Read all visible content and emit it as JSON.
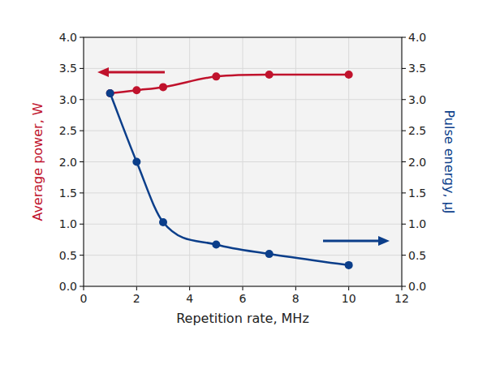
{
  "chart_data": {
    "type": "line",
    "xlabel": "Repetition rate, MHz",
    "ylabel": "Average power, W",
    "y2label": "Pulse energy, µJ",
    "x": [
      1,
      2,
      3,
      5,
      7,
      10
    ],
    "series": [
      {
        "color": "#c0122c",
        "marker": "circle",
        "values": [
          3.1,
          3.15,
          3.2,
          3.37,
          3.4,
          3.4
        ]
      },
      {
        "color": "#0b3e8a",
        "marker": "circle",
        "axis": "y2",
        "values": [
          3.1,
          2.0,
          1.03,
          0.67,
          0.52,
          0.34
        ]
      }
    ],
    "xlim": [
      0,
      12
    ],
    "xticks": [
      0,
      2,
      4,
      6,
      8,
      10,
      12
    ],
    "ylim": [
      0,
      4
    ],
    "yticks": [
      {
        "value": 0,
        "label": "0.0"
      },
      0.5,
      {
        "value": 1,
        "label": "1.0"
      },
      1.5,
      {
        "value": 2,
        "label": "2.0"
      },
      2.5,
      {
        "value": 3,
        "label": "3.0"
      },
      3.5,
      {
        "value": 4,
        "label": "4.0"
      }
    ],
    "y2lim": [
      0,
      4
    ],
    "y2ticks": [
      {
        "value": 0,
        "label": "0.0"
      },
      0.5,
      {
        "value": 1,
        "label": "1.0"
      },
      1.5,
      {
        "value": 2,
        "label": "2.0"
      },
      2.5,
      {
        "value": 3,
        "label": "3.0"
      },
      3.5,
      {
        "value": 4,
        "label": "4.0"
      }
    ],
    "grid": true
  }
}
